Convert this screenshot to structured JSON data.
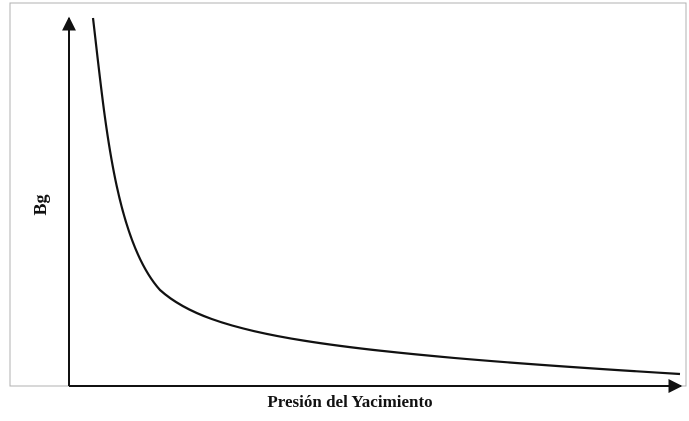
{
  "y_label": "Bg",
  "x_label": "Presión del Yacimiento"
}
